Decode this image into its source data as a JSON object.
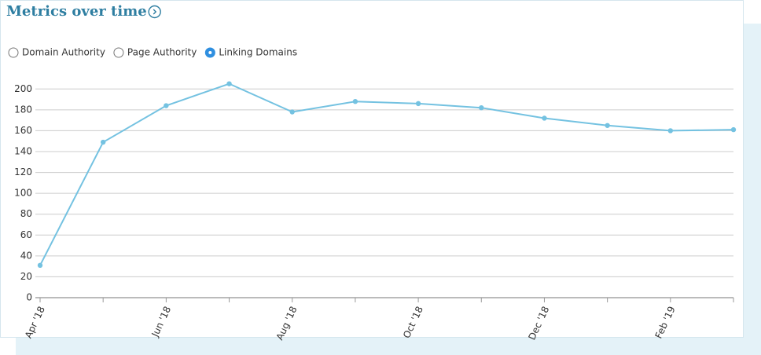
{
  "chart_data": {
    "type": "line",
    "title": "Metrics over time",
    "options": [
      "Domain Authority",
      "Page Authority",
      "Linking Domains"
    ],
    "selected": 2,
    "categories": [
      "Apr '18",
      null,
      "Jun '18",
      null,
      "Aug '18",
      null,
      "Oct '18",
      null,
      "Dec '18",
      null,
      "Feb '19",
      null
    ],
    "series": [
      {
        "name": "Linking Domains",
        "color": "#74c2e1",
        "values": [
          31,
          149,
          184,
          205,
          178,
          188,
          186,
          182,
          172,
          165,
          160,
          161
        ]
      }
    ],
    "ylim": [
      0,
      210
    ],
    "yticks": [
      0,
      20,
      40,
      60,
      80,
      100,
      120,
      140,
      160,
      180,
      200
    ],
    "grid": true
  }
}
